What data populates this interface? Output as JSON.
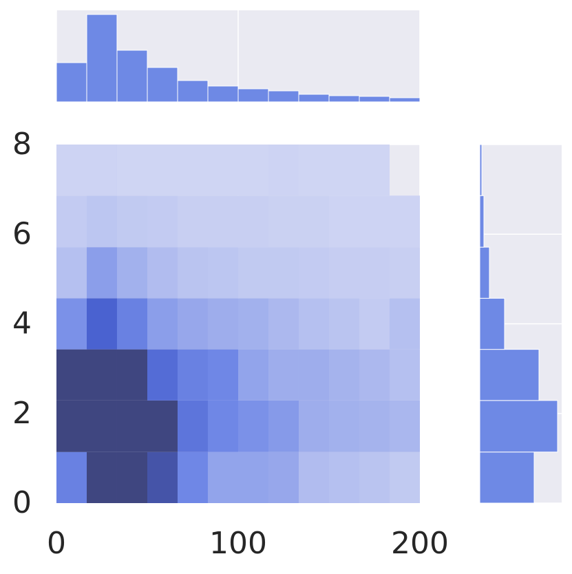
{
  "chart_data": [
    {
      "type": "heatmap",
      "xbins": [
        0,
        16.67,
        33.33,
        50,
        66.67,
        83.33,
        100,
        116.67,
        133.33,
        150,
        166.67,
        183.33,
        200
      ],
      "ybins": [
        0,
        1.14,
        2.29,
        3.43,
        4.57,
        5.71,
        6.86,
        8
      ],
      "values": [
        [
          0.55,
          1,
          1,
          0.9,
          0.5,
          0.35,
          0.35,
          0.33,
          0.22,
          0.2,
          0.18,
          0.15
        ],
        [
          1,
          1,
          1,
          1,
          0.65,
          0.5,
          0.45,
          0.4,
          0.3,
          0.28,
          0.27,
          0.25
        ],
        [
          1,
          1,
          1,
          0.72,
          0.55,
          0.5,
          0.35,
          0.3,
          0.3,
          0.27,
          0.24,
          0.2
        ],
        [
          0.45,
          0.8,
          0.55,
          0.38,
          0.33,
          0.3,
          0.28,
          0.24,
          0.2,
          0.18,
          0.14,
          0.2
        ],
        [
          0.2,
          0.38,
          0.28,
          0.22,
          0.18,
          0.17,
          0.15,
          0.15,
          0.14,
          0.13,
          0.13,
          0.12
        ],
        [
          0.14,
          0.17,
          0.15,
          0.14,
          0.12,
          0.12,
          0.12,
          0.11,
          0.11,
          0.1,
          0.1,
          0.1
        ],
        [
          0.1,
          0.1,
          0.09,
          0.09,
          0.09,
          0.09,
          0.09,
          0.1,
          0.09,
          0.09,
          0.09,
          null
        ]
      ],
      "xlim": [
        0,
        200
      ],
      "xticks": [
        0,
        100,
        200
      ],
      "ylim": [
        0,
        8
      ],
      "yticks": [
        0,
        2,
        4,
        6,
        8
      ],
      "grid": true
    },
    {
      "type": "histogram",
      "orientation": "vertical",
      "color": "#6e89e5",
      "bins": [
        0,
        16.67,
        33.33,
        50,
        66.67,
        83.33,
        100,
        116.67,
        133.33,
        150,
        166.67,
        183.33,
        200
      ],
      "counts": [
        57,
        127,
        75,
        50,
        31,
        23,
        19,
        16,
        11,
        9,
        8,
        6
      ],
      "xlim": [
        0,
        200
      ],
      "xticks": [
        0,
        100,
        200
      ],
      "ylim": [
        0,
        133
      ],
      "grid": true
    },
    {
      "type": "histogram",
      "orientation": "horizontal",
      "color": "#6e89e5",
      "bins": [
        0,
        1.14,
        2.29,
        3.43,
        4.57,
        5.71,
        6.86,
        8
      ],
      "counts": [
        79,
        113,
        86,
        36,
        14,
        6,
        3
      ],
      "ylim": [
        0,
        8
      ],
      "yticks": [
        0,
        2,
        4,
        6,
        8
      ],
      "xlim": [
        0,
        119
      ],
      "grid": true
    }
  ]
}
